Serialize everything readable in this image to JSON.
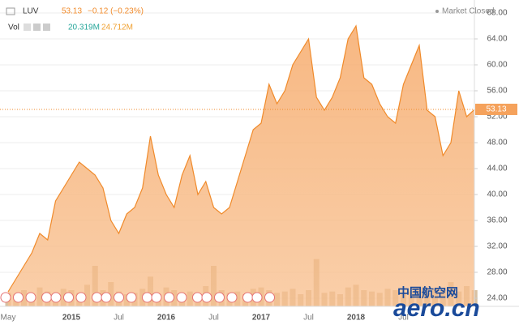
{
  "chart_data": {
    "type": "area",
    "symbol": "LUV",
    "last": "53.13",
    "change": "−0.12 (−0.23%)",
    "status": "Market Closed",
    "volume_label": "Vol",
    "volume_value": "20.319M",
    "volume_average": "24.712M",
    "watermark": "中国航空网",
    "watermark_domain": "aero.cn",
    "categories": [
      "May",
      null,
      null,
      null,
      null,
      null,
      null,
      null,
      "2015",
      null,
      null,
      null,
      null,
      null,
      "Jul",
      null,
      null,
      null,
      null,
      null,
      "2016",
      null,
      null,
      null,
      null,
      null,
      "Jul",
      null,
      null,
      null,
      null,
      null,
      "2017",
      null,
      null,
      null,
      null,
      null,
      "Jul",
      null,
      null,
      null,
      null,
      null,
      "2018",
      null,
      null,
      null,
      null,
      null,
      "Jul",
      null,
      null,
      null,
      null,
      null,
      null,
      null,
      null,
      null
    ],
    "series": [
      {
        "name": "LUV",
        "color": "#f08a2a",
        "values": [
          25,
          27,
          29,
          31,
          34,
          33,
          39,
          41,
          43,
          45,
          44,
          43,
          41,
          36,
          34,
          37,
          38,
          41,
          49,
          43,
          40,
          38,
          43,
          46,
          40,
          42,
          38,
          37,
          38,
          42,
          46,
          50,
          51,
          57,
          54,
          56,
          60,
          62,
          64,
          55,
          53,
          55,
          58,
          64,
          66,
          58,
          57,
          54,
          52,
          51,
          57,
          60,
          63,
          53,
          52,
          46,
          48,
          56,
          52,
          53.13
        ]
      },
      {
        "name": "Vol",
        "color": "#c9a77a",
        "values": [
          10,
          9,
          12,
          8,
          14,
          11,
          9,
          13,
          12,
          10,
          16,
          30,
          12,
          18,
          11,
          9,
          10,
          13,
          22,
          9,
          14,
          12,
          10,
          11,
          9,
          15,
          30,
          12,
          10,
          11,
          9,
          13,
          14,
          12,
          10,
          11,
          13,
          9,
          12,
          35,
          10,
          11,
          9,
          14,
          16,
          12,
          11,
          10,
          13,
          12,
          9,
          11,
          14,
          10,
          13,
          12,
          18,
          11,
          15,
          12
        ]
      }
    ],
    "ylim": [
      22,
      70
    ],
    "vol_ylim": [
      0,
      60
    ],
    "yticks": [
      {
        "value": 24,
        "label": "24.00"
      },
      {
        "value": 28,
        "label": "28.00"
      },
      {
        "value": 32,
        "label": "32.00"
      },
      {
        "value": 36,
        "label": "36.00"
      },
      {
        "value": 40,
        "label": "40.00"
      },
      {
        "value": 44,
        "label": "44.00"
      },
      {
        "value": 48,
        "label": "48.00"
      },
      {
        "value": 52,
        "label": "52.00"
      },
      {
        "value": 56,
        "label": "56.00"
      },
      {
        "value": 60,
        "label": "60.00"
      },
      {
        "value": 64,
        "label": "64.00"
      },
      {
        "value": 68,
        "label": "68.00"
      }
    ],
    "grid": true
  }
}
